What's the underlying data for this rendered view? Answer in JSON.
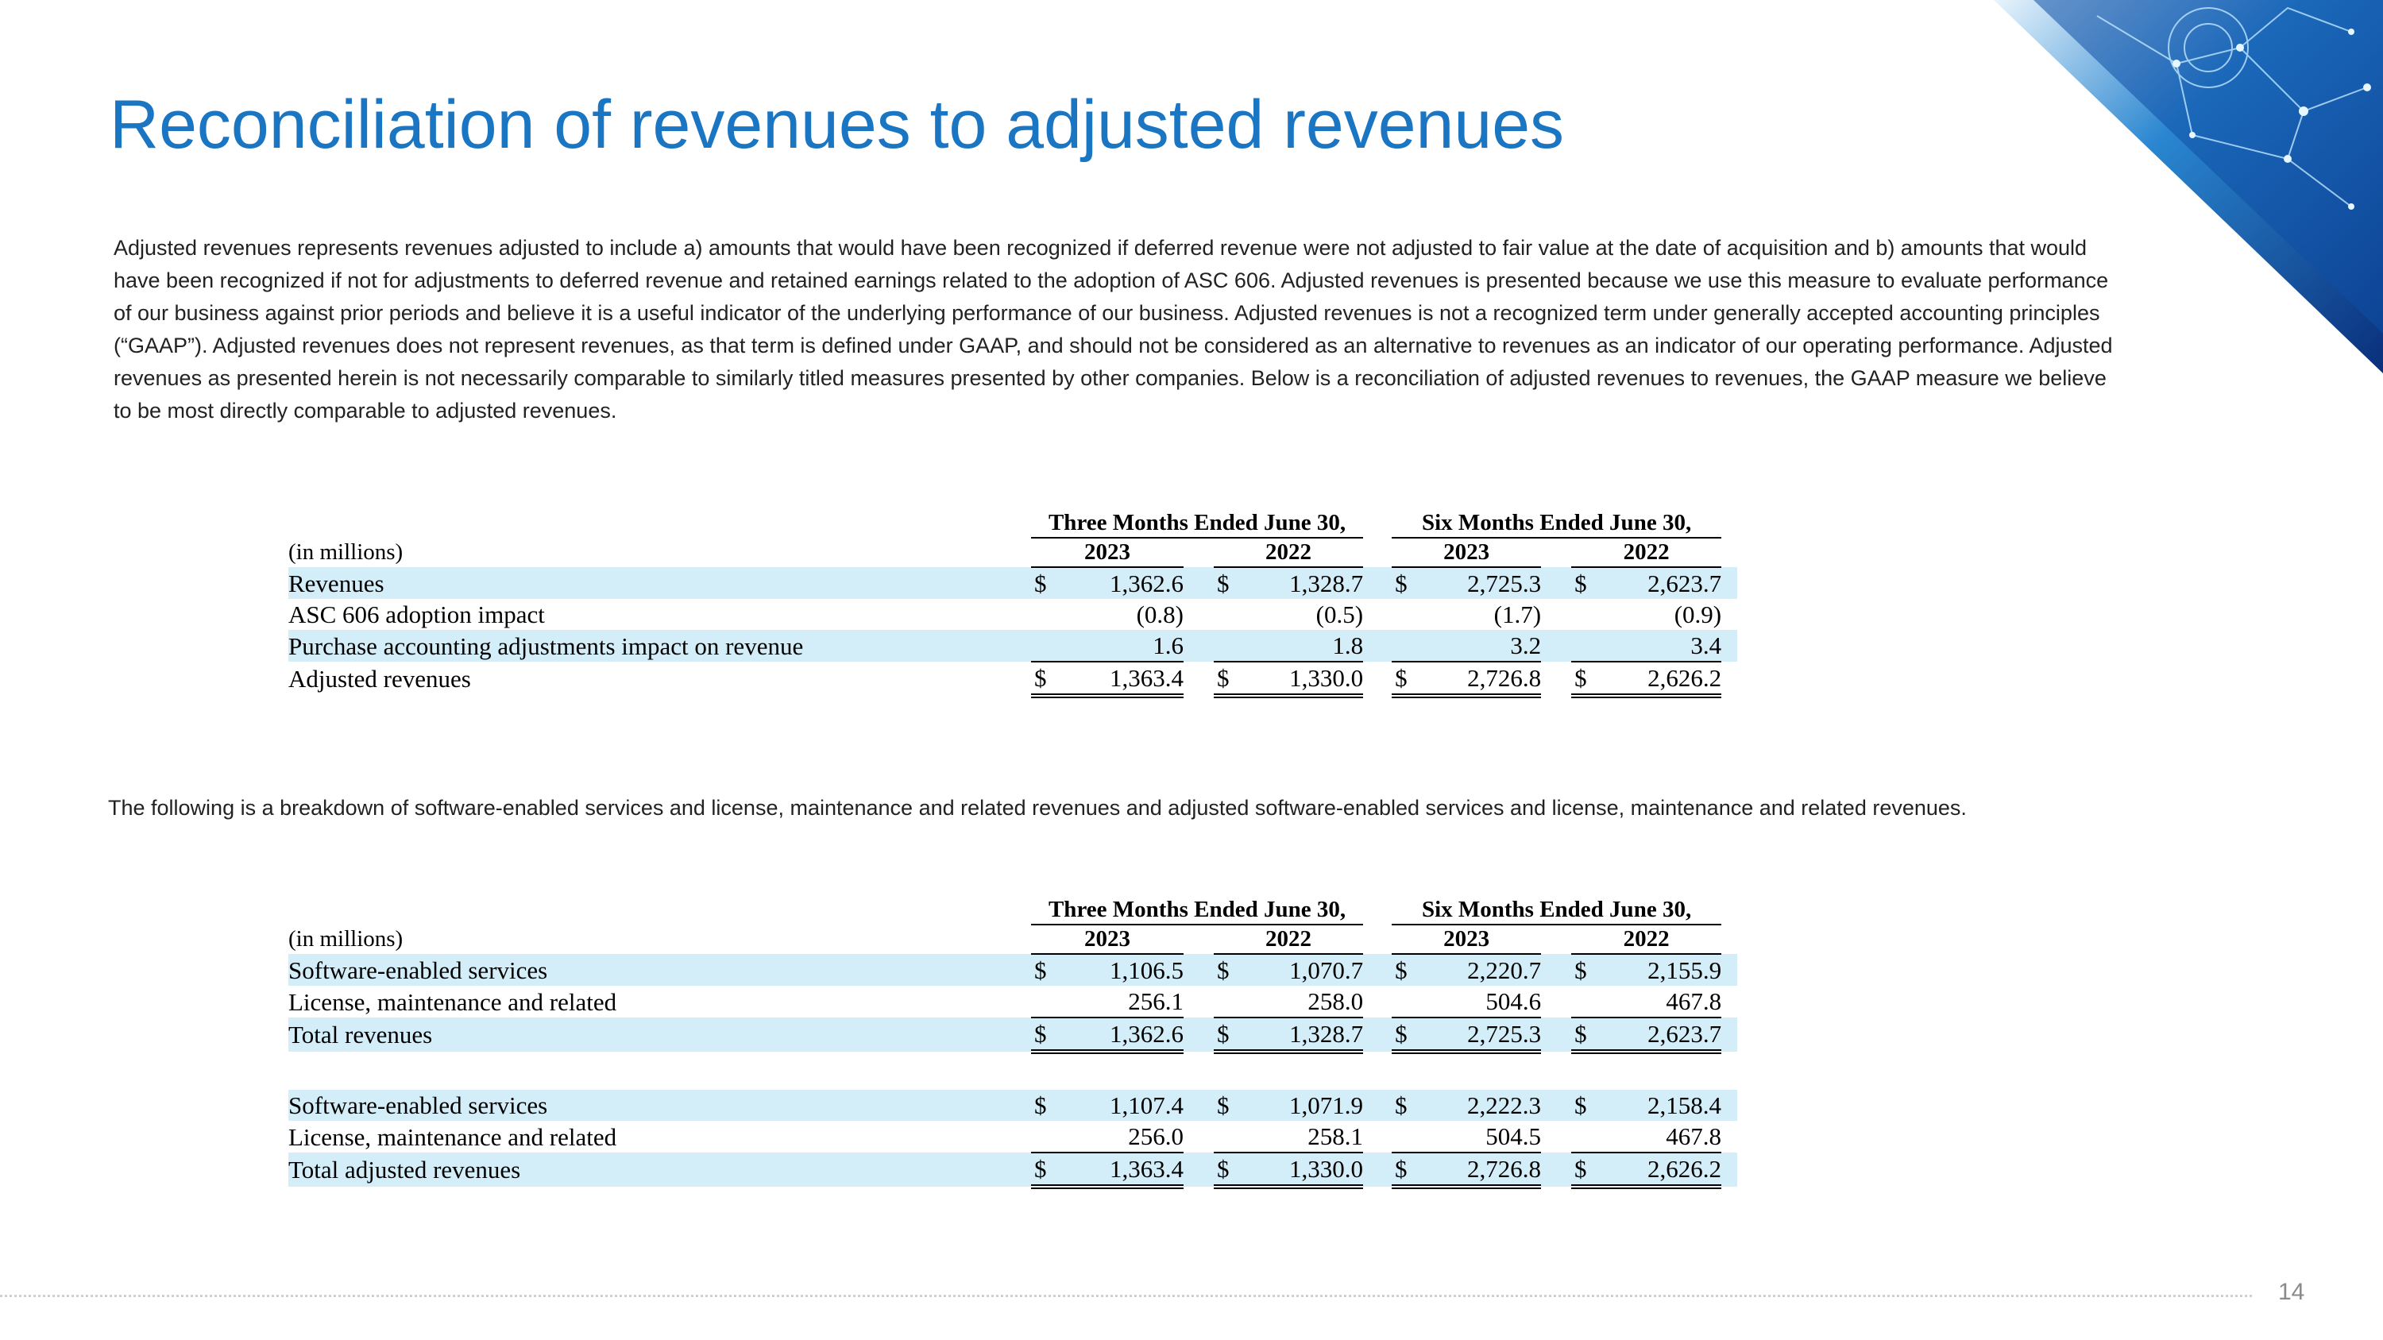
{
  "title": "Reconciliation of revenues to adjusted revenues",
  "intro": "Adjusted revenues represents revenues adjusted to include a) amounts that would have been recognized if deferred revenue were not adjusted to fair value at the date of acquisition and b) amounts that would have been recognized if not for adjustments to deferred revenue and retained earnings related to the adoption of ASC 606.  Adjusted revenues is presented because we use this measure to evaluate performance of our business against prior periods and believe it is a useful indicator of the underlying performance of our business.  Adjusted revenues is not a recognized term under generally accepted accounting principles (“GAAP”).  Adjusted revenues does not represent revenues, as that term is defined under GAAP, and should not be considered as an alternative to revenues as an indicator of our operating performance.  Adjusted revenues as presented herein is not necessarily comparable to similarly titled measures presented by other companies.  Below is a reconciliation of adjusted revenues to revenues, the GAAP measure we believe to be most directly comparable to adjusted revenues.",
  "breakdown_intro": "The following is a breakdown of software-enabled services and license, maintenance and related revenues and adjusted software-enabled services and license, maintenance and related revenues.",
  "currency": "$",
  "tables": [
    {
      "unit": "(in millions)",
      "groups": [
        "Three Months Ended June 30,",
        "Six Months Ended June 30,"
      ],
      "years": [
        "2023",
        "2022",
        "2023",
        "2022"
      ],
      "rows": [
        {
          "label": "Revenues",
          "values": [
            "1,362.6",
            "1,328.7",
            "2,725.3",
            "2,623.7"
          ],
          "dollar": true
        },
        {
          "label": "ASC 606 adoption impact",
          "values": [
            "(0.8)",
            "(0.5)",
            "(1.7)",
            "(0.9)"
          ]
        },
        {
          "label": "Purchase accounting adjustments impact on revenue",
          "values": [
            "1.6",
            "1.8",
            "3.2",
            "3.4"
          ]
        },
        {
          "label": "Adjusted revenues",
          "values": [
            "1,363.4",
            "1,330.0",
            "2,726.8",
            "2,626.2"
          ],
          "dollar": true,
          "total": true
        }
      ]
    },
    {
      "unit": "(in millions)",
      "groups": [
        "Three Months Ended June 30,",
        "Six Months Ended June 30,"
      ],
      "years": [
        "2023",
        "2022",
        "2023",
        "2022"
      ],
      "rows": [
        {
          "label": "Software-enabled services",
          "values": [
            "1,106.5",
            "1,070.7",
            "2,220.7",
            "2,155.9"
          ],
          "dollar": true
        },
        {
          "label": "License, maintenance and related",
          "values": [
            "256.1",
            "258.0",
            "504.6",
            "467.8"
          ]
        },
        {
          "label": "Total revenues",
          "values": [
            "1,362.6",
            "1,328.7",
            "2,725.3",
            "2,623.7"
          ],
          "dollar": true,
          "total": true
        }
      ]
    },
    {
      "rows": [
        {
          "label": "Software-enabled services",
          "values": [
            "1,107.4",
            "1,071.9",
            "2,222.3",
            "2,158.4"
          ],
          "dollar": true
        },
        {
          "label": "License, maintenance and related",
          "values": [
            "256.0",
            "258.1",
            "504.5",
            "467.8"
          ]
        },
        {
          "label": "Total adjusted revenues",
          "values": [
            "1,363.4",
            "1,330.0",
            "2,726.8",
            "2,626.2"
          ],
          "dollar": true,
          "total": true
        }
      ]
    }
  ],
  "page_number": "14"
}
